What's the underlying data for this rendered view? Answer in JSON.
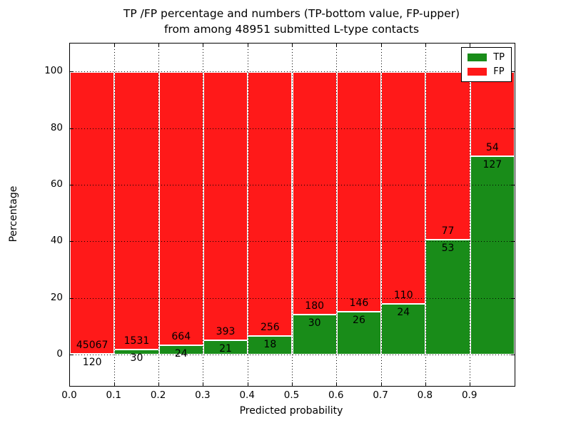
{
  "figure": {
    "title_line1": "TP /FP percentage and numbers (TP-bottom value, FP-upper)",
    "title_line2": "from among 48951 submitted L-type contacts"
  },
  "chart_data": {
    "type": "bar",
    "subtype": "stacked-percentage-histogram",
    "title": "TP /FP percentage and numbers (TP-bottom value, FP-upper) from among 48951 submitted L-type contacts",
    "xlabel": "Predicted probability",
    "ylabel": "Percentage",
    "total_contacts": 48951,
    "bin_width": 0.1,
    "x_bin_starts": [
      0.0,
      0.1,
      0.2,
      0.3,
      0.4,
      0.5,
      0.6,
      0.7,
      0.8,
      0.9
    ],
    "series": [
      {
        "name": "TP",
        "color": "#198c19",
        "counts": [
          120,
          30,
          24,
          21,
          18,
          30,
          26,
          24,
          53,
          127
        ]
      },
      {
        "name": "FP",
        "color": "#ff1919",
        "counts": [
          45067,
          1531,
          664,
          393,
          256,
          180,
          146,
          110,
          77,
          54
        ]
      }
    ],
    "tp_percent_of_bin": [
      0.27,
      1.92,
      3.49,
      5.07,
      6.57,
      14.29,
      15.12,
      17.91,
      40.77,
      70.17
    ],
    "xticks": {
      "values": [
        0.0,
        0.1,
        0.2,
        0.3,
        0.4,
        0.5,
        0.6,
        0.7,
        0.8,
        0.9
      ],
      "labels": [
        "0.0",
        "0.1",
        "0.2",
        "0.3",
        "0.4",
        "0.5",
        "0.6",
        "0.7",
        "0.8",
        "0.9"
      ]
    },
    "yticks": {
      "values": [
        0,
        20,
        40,
        60,
        80,
        100
      ],
      "labels": [
        "0",
        "20",
        "40",
        "60",
        "80",
        "100"
      ]
    },
    "xlim": [
      0.0,
      1.0
    ],
    "ylim": [
      -11,
      110
    ],
    "grid": true,
    "grid_style": "dotted",
    "legend_position": "upper right",
    "legend_entries": [
      "TP",
      "FP"
    ],
    "colors": {
      "tp": "#198c19",
      "fp": "#ff1919",
      "bar_edge": "#ffffff",
      "grid": "#000000",
      "axis": "#000000",
      "text": "#000000",
      "background": "#ffffff"
    }
  }
}
